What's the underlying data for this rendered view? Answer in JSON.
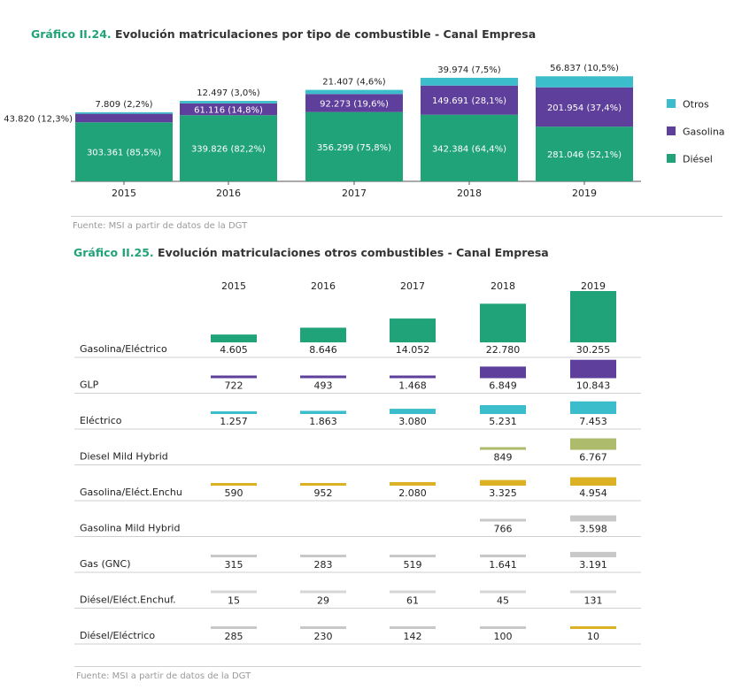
{
  "chart_data": [
    {
      "type": "bar",
      "stacked": true,
      "title_num": "Gráfico II.24.",
      "title_rest": "Evolución matriculaciones por tipo de combustible - Canal Empresa",
      "categories": [
        "2015",
        "2016",
        "2017",
        "2018",
        "2019"
      ],
      "series": [
        {
          "name": "Diésel",
          "color": "#21a37a",
          "values": [
            303361,
            339826,
            356299,
            342384,
            281046
          ],
          "labels": [
            "303.361 (85,5%)",
            "339.826 (82,2%)",
            "356.299 (75,8%)",
            "342.384 (64,4%)",
            "281.046 (52,1%)"
          ]
        },
        {
          "name": "Gasolina",
          "color": "#5e3f9b",
          "values": [
            43820,
            61116,
            92273,
            149691,
            201954
          ],
          "labels": [
            "43.820 (12,3%)",
            "61.116 (14,8%)",
            "92.273 (19,6%)",
            "149.691 (28,1%)",
            "201.954 (37,4%)"
          ]
        },
        {
          "name": "Otros",
          "color": "#3cbdcb",
          "values": [
            7809,
            12497,
            21407,
            39974,
            56837
          ],
          "labels": [
            "7.809 (2,2%)",
            "12.497 (3,0%)",
            "21.407 (4,6%)",
            "39.974 (7,5%)",
            "56.837 (10,5%)"
          ]
        }
      ],
      "legend": [
        "Otros",
        "Gasolina",
        "Diésel"
      ],
      "legend_position": "right",
      "source": "Fuente: MSI a partir de datos de la DGT"
    },
    {
      "type": "bar",
      "layout": "small-multiples",
      "title_num": "Gráfico II.25.",
      "title_rest": "Evolución matriculaciones otros combustibles - Canal Empresa",
      "categories": [
        "2015",
        "2016",
        "2017",
        "2018",
        "2019"
      ],
      "rows": [
        {
          "name": "Gasolina/Eléctrico",
          "color": "#21a37a",
          "values": [
            4605,
            8646,
            14052,
            22780,
            30255
          ],
          "labels": [
            "4.605",
            "8.646",
            "14.052",
            "22.780",
            "30.255"
          ]
        },
        {
          "name": "GLP",
          "color": "#5e3f9b",
          "values": [
            722,
            493,
            1468,
            6849,
            10843
          ],
          "labels": [
            "722",
            "493",
            "1.468",
            "6.849",
            "10.843"
          ]
        },
        {
          "name": "Eléctrico",
          "color": "#3cbdcb",
          "values": [
            1257,
            1863,
            3080,
            5231,
            7453
          ],
          "labels": [
            "1.257",
            "1.863",
            "3.080",
            "5.231",
            "7.453"
          ]
        },
        {
          "name": "Diesel Mild Hybrid",
          "color": "#adbb6c",
          "values": [
            null,
            null,
            null,
            849,
            6767
          ],
          "labels": [
            "",
            "",
            "",
            "849",
            "6.767"
          ]
        },
        {
          "name": "Gasolina/Eléct.Enchu",
          "color": "#dcb124",
          "values": [
            590,
            952,
            2080,
            3325,
            4954
          ],
          "labels": [
            "590",
            "952",
            "2.080",
            "3.325",
            "4.954"
          ]
        },
        {
          "name": "Gasolina Mild Hybrid",
          "color": "#c8c8c8",
          "values": [
            null,
            null,
            null,
            766,
            3598
          ],
          "labels": [
            "",
            "",
            "",
            "766",
            "3.598"
          ]
        },
        {
          "name": "Gas (GNC)",
          "color": "#c8c8c8",
          "values": [
            315,
            283,
            519,
            1641,
            3191
          ],
          "labels": [
            "315",
            "283",
            "519",
            "1.641",
            "3.191"
          ]
        },
        {
          "name": "Diésel/Eléct.Enchuf.",
          "color": "#d6d6d6",
          "values": [
            15,
            29,
            61,
            45,
            131
          ],
          "labels": [
            "15",
            "29",
            "61",
            "45",
            "131"
          ]
        },
        {
          "name": "Diésel/Eléctrico",
          "color": "#c8c8c8",
          "values": [
            285,
            230,
            142,
            100,
            10
          ],
          "labels": [
            "285",
            "230",
            "142",
            "100",
            "10"
          ],
          "colors": [
            "#c8c8c8",
            "#c8c8c8",
            "#c8c8c8",
            "#c8c8c8",
            "#dcb124"
          ]
        }
      ],
      "source": "Fuente: MSI a partir de datos de la DGT"
    }
  ]
}
